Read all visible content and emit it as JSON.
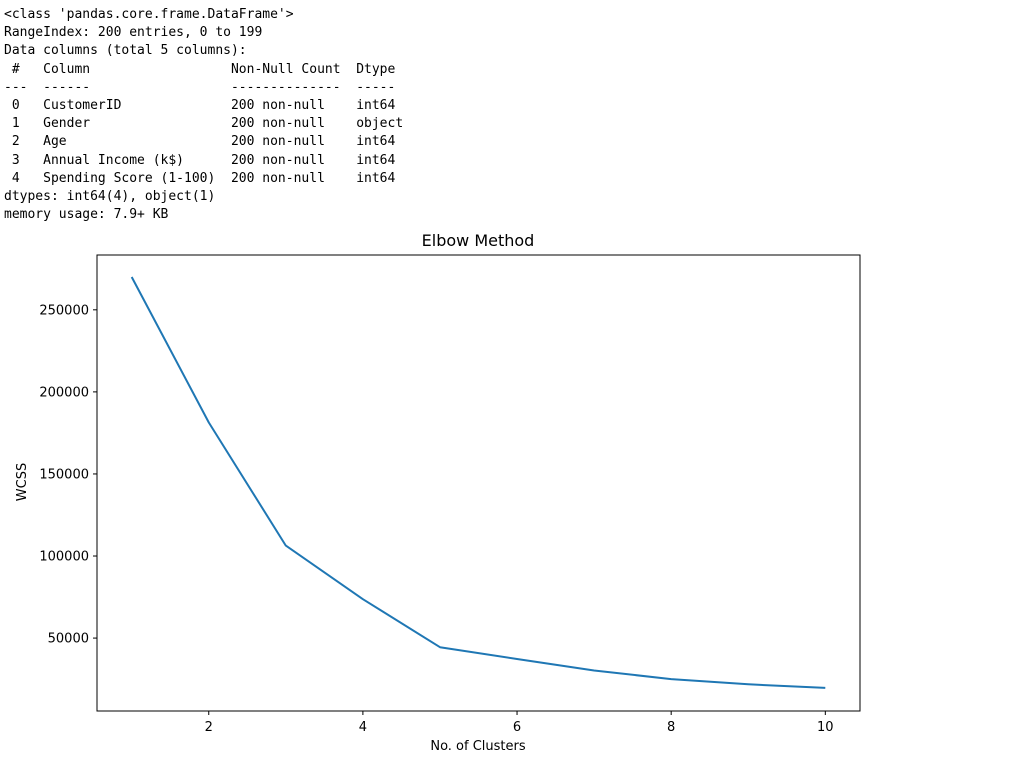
{
  "console": {
    "lines": [
      "<class 'pandas.core.frame.DataFrame'>",
      "RangeIndex: 200 entries, 0 to 199",
      "Data columns (total 5 columns):",
      " #   Column                  Non-Null Count  Dtype ",
      "---  ------                  --------------  ----- ",
      " 0   CustomerID              200 non-null    int64 ",
      " 1   Gender                  200 non-null    object",
      " 2   Age                     200 non-null    int64 ",
      " 3   Annual Income (k$)      200 non-null    int64 ",
      " 4   Spending Score (1-100)  200 non-null    int64 ",
      "dtypes: int64(4), object(1)",
      "memory usage: 7.9+ KB"
    ]
  },
  "chart_data": {
    "type": "line",
    "title": "Elbow Method",
    "xlabel": "No. of Clusters",
    "ylabel": "WCSS",
    "x": [
      1,
      2,
      3,
      4,
      5,
      6,
      7,
      8,
      9,
      10
    ],
    "series": [
      {
        "values": [
          269981,
          181363,
          106348,
          73679,
          44448,
          37233,
          30227,
          25011,
          21850,
          19657
        ],
        "color": "#1f77b4"
      }
    ],
    "xlim": [
      0.55,
      10.45
    ],
    "ylim": [
      5573,
      283400
    ],
    "xticks": [
      2,
      4,
      6,
      8,
      10
    ],
    "xtick_labels": [
      "2",
      "4",
      "6",
      "8",
      "10"
    ],
    "yticks": [
      50000,
      100000,
      150000,
      200000,
      250000
    ],
    "ytick_labels": [
      "50000",
      "100000",
      "150000",
      "200000",
      "250000"
    ],
    "grid": false
  }
}
